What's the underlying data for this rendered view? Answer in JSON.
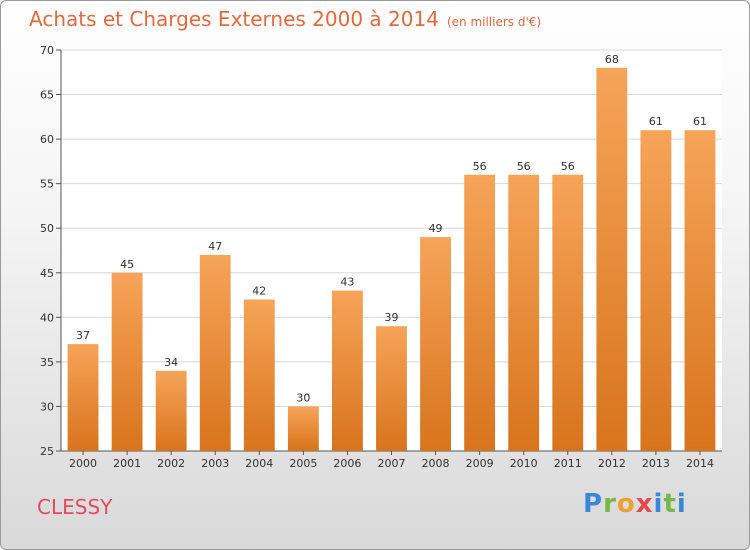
{
  "chart_data": {
    "type": "bar",
    "title": "Achats et Charges Externes 2000 à 2014",
    "subtitle": "(en milliers d'€)",
    "categories": [
      "2000",
      "2001",
      "2002",
      "2003",
      "2004",
      "2005",
      "2006",
      "2007",
      "2008",
      "2009",
      "2010",
      "2011",
      "2012",
      "2013",
      "2014"
    ],
    "values": [
      37,
      45,
      34,
      47,
      42,
      30,
      43,
      39,
      49,
      56,
      56,
      56,
      68,
      61,
      61
    ],
    "xlabel": "",
    "ylabel": "",
    "ylim": [
      25,
      70
    ],
    "yticks": [
      25,
      30,
      35,
      40,
      45,
      50,
      55,
      60,
      65,
      70
    ],
    "grid": true,
    "bar_color": "#f0923a"
  },
  "footer": {
    "city": "CLESSY",
    "logo": {
      "p": "P",
      "r": "r",
      "o": "o",
      "x": "x",
      "i": "i",
      "t": "t",
      "i2": "i"
    }
  }
}
